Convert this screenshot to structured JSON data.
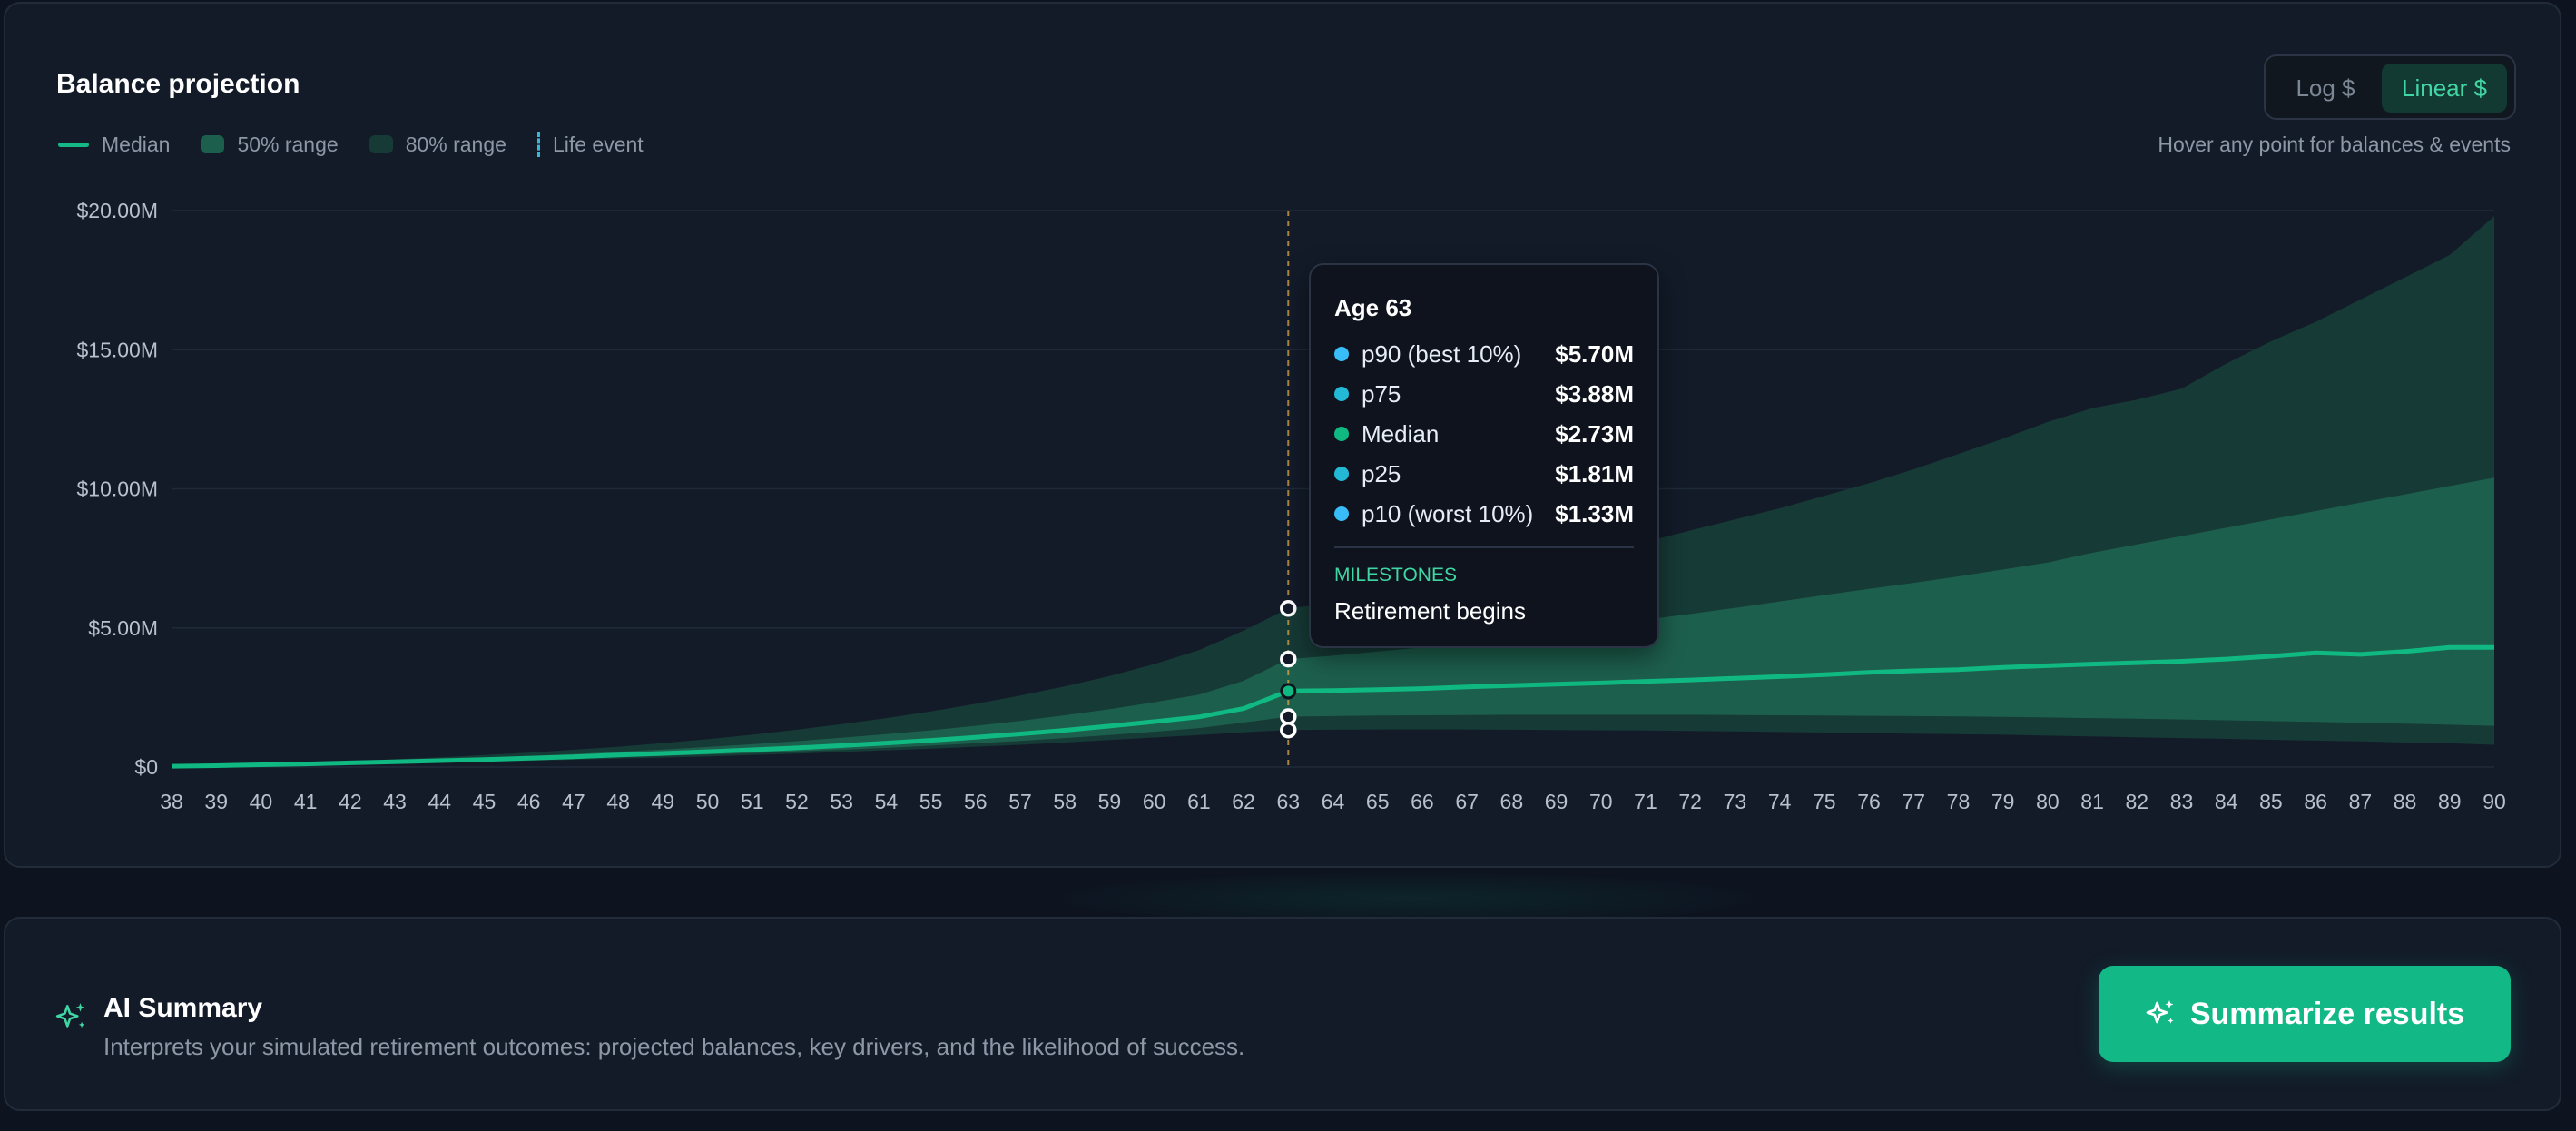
{
  "chart_panel": {
    "title": "Balance projection",
    "scale_toggle": {
      "options": [
        "Log $",
        "Linear $"
      ],
      "selected": "Linear $"
    },
    "legend": {
      "median": "Median",
      "range50": "50% range",
      "range80": "80% range",
      "event": "Life event"
    },
    "hint": "Hover any point for balances & events"
  },
  "chart_data": {
    "type": "area",
    "y_unit": "USD (millions)",
    "ylim": [
      0,
      20
    ],
    "y_ticks": [
      "$0",
      "$5.00M",
      "$10.00M",
      "$15.00M",
      "$20.00M"
    ],
    "x": [
      38,
      39,
      40,
      41,
      42,
      43,
      44,
      45,
      46,
      47,
      48,
      49,
      50,
      51,
      52,
      53,
      54,
      55,
      56,
      57,
      58,
      59,
      60,
      61,
      62,
      63,
      64,
      65,
      66,
      67,
      68,
      69,
      70,
      71,
      72,
      73,
      74,
      75,
      76,
      77,
      78,
      79,
      80,
      81,
      82,
      83,
      84,
      85,
      86,
      87,
      88,
      89,
      90
    ],
    "series": [
      {
        "name": "Median",
        "values": [
          0.03,
          0.05,
          0.08,
          0.11,
          0.15,
          0.19,
          0.23,
          0.27,
          0.32,
          0.37,
          0.43,
          0.49,
          0.55,
          0.62,
          0.69,
          0.77,
          0.86,
          0.96,
          1.07,
          1.19,
          1.32,
          1.47,
          1.63,
          1.8,
          2.1,
          2.73,
          2.75,
          2.78,
          2.82,
          2.88,
          2.93,
          2.98,
          3.02,
          3.08,
          3.13,
          3.19,
          3.25,
          3.32,
          3.4,
          3.46,
          3.5,
          3.58,
          3.64,
          3.7,
          3.75,
          3.8,
          3.88,
          3.98,
          4.1,
          4.05,
          4.15,
          4.3,
          4.3
        ]
      },
      {
        "name": "p25",
        "values": [
          0.02,
          0.04,
          0.06,
          0.09,
          0.12,
          0.15,
          0.18,
          0.22,
          0.26,
          0.3,
          0.35,
          0.4,
          0.45,
          0.5,
          0.56,
          0.62,
          0.69,
          0.77,
          0.85,
          0.94,
          1.04,
          1.15,
          1.27,
          1.4,
          1.6,
          1.81,
          1.83,
          1.85,
          1.86,
          1.87,
          1.88,
          1.88,
          1.88,
          1.88,
          1.88,
          1.87,
          1.86,
          1.85,
          1.84,
          1.83,
          1.82,
          1.8,
          1.78,
          1.76,
          1.74,
          1.71,
          1.68,
          1.65,
          1.62,
          1.59,
          1.56,
          1.52,
          1.48
        ]
      },
      {
        "name": "p75",
        "values": [
          0.04,
          0.06,
          0.1,
          0.14,
          0.18,
          0.23,
          0.28,
          0.34,
          0.4,
          0.47,
          0.55,
          0.63,
          0.72,
          0.82,
          0.93,
          1.05,
          1.18,
          1.32,
          1.48,
          1.66,
          1.86,
          2.08,
          2.33,
          2.6,
          3.1,
          3.88,
          4.0,
          4.15,
          4.3,
          4.5,
          4.7,
          4.9,
          5.1,
          5.3,
          5.5,
          5.72,
          5.95,
          6.18,
          6.4,
          6.62,
          6.85,
          7.1,
          7.35,
          7.7,
          8.0,
          8.3,
          8.6,
          8.9,
          9.2,
          9.5,
          9.8,
          10.1,
          10.4
        ]
      },
      {
        "name": "p10",
        "values": [
          0.01,
          0.03,
          0.05,
          0.07,
          0.1,
          0.13,
          0.16,
          0.19,
          0.22,
          0.26,
          0.3,
          0.34,
          0.38,
          0.43,
          0.48,
          0.54,
          0.6,
          0.66,
          0.73,
          0.8,
          0.88,
          0.97,
          1.06,
          1.15,
          1.25,
          1.33,
          1.34,
          1.35,
          1.35,
          1.35,
          1.34,
          1.33,
          1.32,
          1.31,
          1.3,
          1.28,
          1.26,
          1.24,
          1.22,
          1.2,
          1.18,
          1.16,
          1.13,
          1.1,
          1.07,
          1.04,
          1.01,
          0.98,
          0.95,
          0.92,
          0.88,
          0.85,
          0.8
        ]
      },
      {
        "name": "p90",
        "values": [
          0.05,
          0.08,
          0.12,
          0.17,
          0.22,
          0.28,
          0.35,
          0.43,
          0.52,
          0.62,
          0.73,
          0.86,
          1.0,
          1.16,
          1.34,
          1.54,
          1.76,
          2.0,
          2.27,
          2.57,
          2.9,
          3.27,
          3.7,
          4.2,
          4.9,
          5.7,
          5.9,
          6.15,
          6.4,
          6.7,
          7.0,
          7.3,
          7.7,
          8.1,
          8.5,
          8.9,
          9.3,
          9.75,
          10.2,
          10.7,
          11.25,
          11.8,
          12.4,
          12.9,
          13.2,
          13.6,
          14.5,
          15.3,
          16.0,
          16.8,
          17.6,
          18.4,
          19.8
        ]
      }
    ],
    "event": {
      "x": 63,
      "label": "Retirement begins"
    }
  },
  "tooltip": {
    "title": "Age 63",
    "rows": [
      {
        "label": "p90 (best 10%)",
        "value": "$5.70M",
        "color": "#38bdf8"
      },
      {
        "label": "p75",
        "value": "$3.88M",
        "color": "#22b8d6"
      },
      {
        "label": "Median",
        "value": "$2.73M",
        "color": "#10b981"
      },
      {
        "label": "p25",
        "value": "$1.81M",
        "color": "#22b8d6"
      },
      {
        "label": "p10 (worst 10%)",
        "value": "$1.33M",
        "color": "#38bdf8"
      }
    ],
    "milestones_label": "MILESTONES",
    "milestone": "Retirement begins"
  },
  "ai_summary": {
    "title": "AI Summary",
    "description": "Interprets your simulated retirement outcomes: projected balances, key drivers, and the likelihood of success.",
    "button": "Summarize results"
  },
  "colors": {
    "accent": "#10b981",
    "band80": "#163a36",
    "band50": "#1d5f4d",
    "event_line": "#d4a04a"
  }
}
